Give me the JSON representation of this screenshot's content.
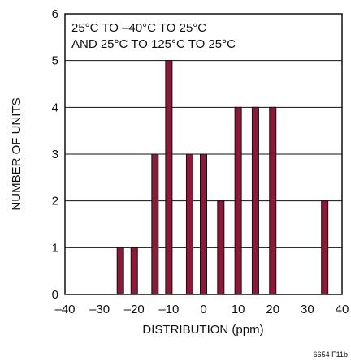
{
  "chart_data": {
    "type": "bar",
    "title": "",
    "xlabel": "DISTRIBUTION (ppm)",
    "ylabel": "NUMBER OF UNITS",
    "xlim": [
      -40,
      40
    ],
    "ylim": [
      0,
      6
    ],
    "x_ticks": [
      -40,
      -30,
      -20,
      -10,
      0,
      10,
      20,
      30,
      40
    ],
    "y_ticks": [
      0,
      1,
      2,
      3,
      4,
      5,
      6
    ],
    "x_tick_labels": [
      "–40",
      "–30",
      "–20",
      "–10",
      "0",
      "10",
      "20",
      "30",
      "40"
    ],
    "y_tick_labels": [
      "0",
      "1",
      "2",
      "3",
      "4",
      "5",
      "6"
    ],
    "grid": "horizontal",
    "bar_color": "#8b1a3a",
    "x": [
      -24,
      -20,
      -14,
      -10,
      -4,
      0,
      5,
      10,
      15,
      20,
      35
    ],
    "values": [
      1,
      1,
      3,
      5,
      3,
      3,
      2,
      4,
      4,
      4,
      2
    ],
    "annotation_lines": [
      "25°C TO –40°C TO 25°C",
      "AND 25°C TO 125°C TO 25°C"
    ],
    "figure_id": "6654 F11b"
  }
}
